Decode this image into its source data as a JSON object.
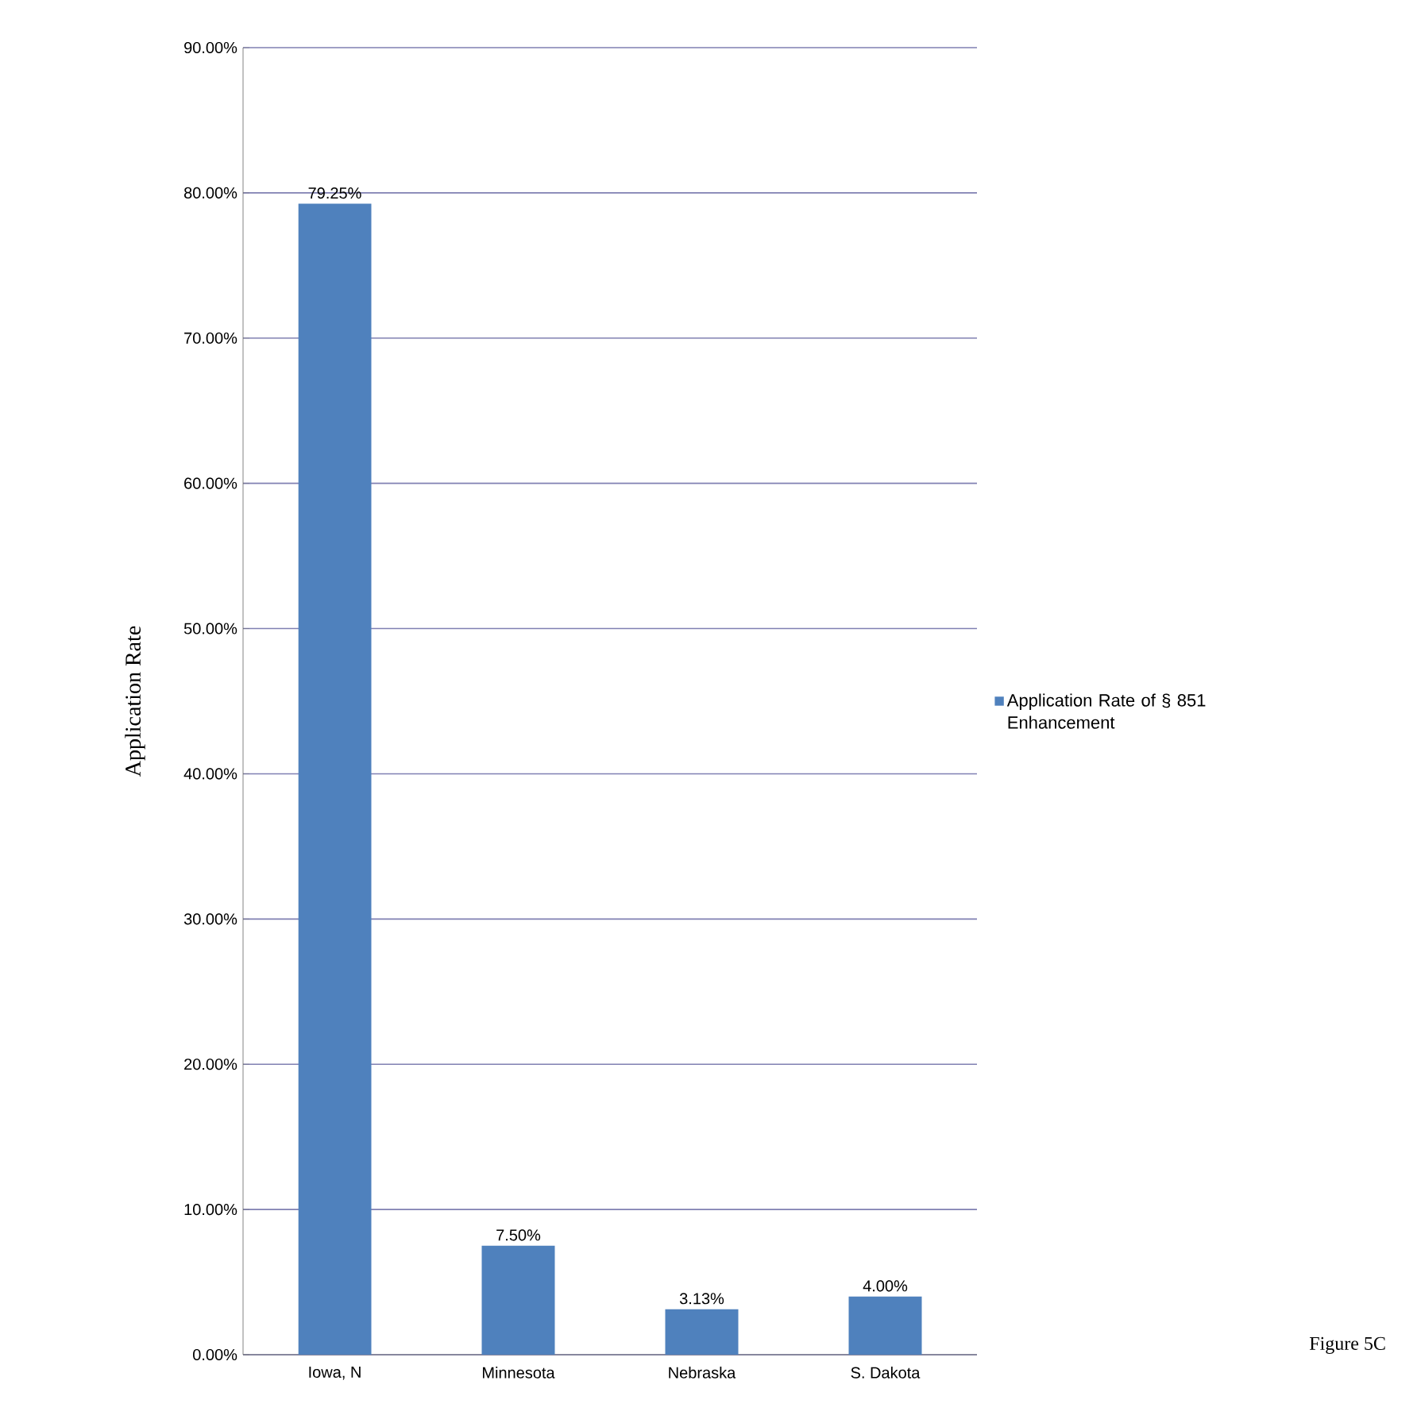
{
  "chart_data": {
    "type": "bar",
    "ylabel": "Application Rate",
    "categories": [
      "Iowa, N",
      "Minnesota",
      "Nebraska",
      "S. Dakota"
    ],
    "series": [
      {
        "name": "Application Rate of § 851 Enhancement",
        "color": "#4f81bd",
        "values": [
          79.25,
          7.5,
          3.13,
          4.0
        ],
        "value_labels": [
          "79.25%",
          "7.50%",
          "3.13%",
          "4.00%"
        ]
      }
    ],
    "ylim": [
      0,
      90
    ],
    "yticks": [
      {
        "value": 0,
        "label": "0.00%"
      },
      {
        "value": 10,
        "label": "10.00%"
      },
      {
        "value": 20,
        "label": "20.00%"
      },
      {
        "value": 30,
        "label": "30.00%"
      },
      {
        "value": 40,
        "label": "40.00%"
      },
      {
        "value": 50,
        "label": "50.00%"
      },
      {
        "value": 60,
        "label": "60.00%"
      },
      {
        "value": 70,
        "label": "70.00%"
      },
      {
        "value": 80,
        "label": "80.00%"
      },
      {
        "value": 90,
        "label": "90.00%"
      }
    ],
    "grid": "y",
    "legend": "right",
    "annotations": [
      "Figure 5C"
    ]
  }
}
